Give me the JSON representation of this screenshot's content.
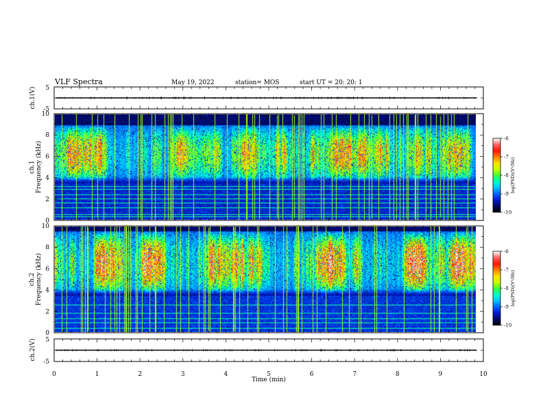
{
  "header": {
    "title": "VLF Spectra",
    "date": "May 19, 2022",
    "station": "station= MOS",
    "start": "start UT =  20: 20: 1"
  },
  "colors": {
    "cmap": [
      "#000000",
      "#000a60",
      "#0018c8",
      "#0060ff",
      "#00c0ff",
      "#00ffc8",
      "#3cff3c",
      "#c8ff00",
      "#ffe000",
      "#ff8000",
      "#ff1800",
      "#ff6060",
      "#ffffff"
    ],
    "trace": "#000000",
    "frame": "#000000"
  },
  "chart_data": [
    {
      "type": "line",
      "name": "ch1-waveform",
      "ylabel": "ch.1(V)",
      "ylim": [
        -5,
        5
      ],
      "yticks": [
        5,
        -5
      ],
      "xlim": [
        0,
        10
      ],
      "trace_level": 0,
      "trace_end_min": 9.85
    },
    {
      "type": "heatmap",
      "name": "ch1-spectrogram",
      "ylabel": "ch.1",
      "ylabel2": "Frequency (kHz)",
      "ylim": [
        0,
        10
      ],
      "yticks": [
        0,
        2,
        4,
        6,
        8,
        10
      ],
      "xlim": [
        0,
        10
      ],
      "data_end_min": 9.85,
      "band_kHz": [
        3.5,
        9.0
      ],
      "band_level": 0.58,
      "bg_level": 0.12,
      "lines_kHz": [
        0.3,
        0.5,
        1.2,
        1.6,
        2.0,
        2.4,
        2.9,
        3.2
      ],
      "colorbar": {
        "label": "log(PSD)(V²/Hz)",
        "ticks": [
          -6,
          -7,
          -8,
          -9,
          -10
        ],
        "range": [
          -10,
          -6
        ]
      }
    },
    {
      "type": "heatmap",
      "name": "ch2-spectrogram",
      "ylabel": "ch.2",
      "ylabel2": "Frequency (kHz)",
      "ylim": [
        0,
        10
      ],
      "yticks": [
        0,
        2,
        4,
        6,
        8,
        10
      ],
      "xlim": [
        0,
        10
      ],
      "data_end_min": 9.85,
      "band_kHz": [
        3.5,
        9.6
      ],
      "band_level": 0.8,
      "bg_level": 0.14,
      "lines_kHz": [
        0.4,
        0.9,
        1.3,
        1.8,
        2.6
      ],
      "colorbar": {
        "label": "log(PSD)(V²/Hz)",
        "ticks": [
          -6,
          -7,
          -8,
          -9,
          -10
        ],
        "range": [
          -10,
          -6
        ]
      }
    },
    {
      "type": "line",
      "name": "ch2-waveform",
      "ylabel": "ch.2(V)",
      "ylim": [
        -5,
        5
      ],
      "yticks": [
        5,
        -5
      ],
      "xlim": [
        0,
        10
      ],
      "trace_level": 0,
      "trace_end_min": 9.85
    }
  ],
  "xaxis": {
    "label": "Time (min)",
    "range": [
      0,
      10
    ],
    "ticks": [
      0,
      1,
      2,
      3,
      4,
      5,
      6,
      7,
      8,
      9,
      10
    ]
  }
}
